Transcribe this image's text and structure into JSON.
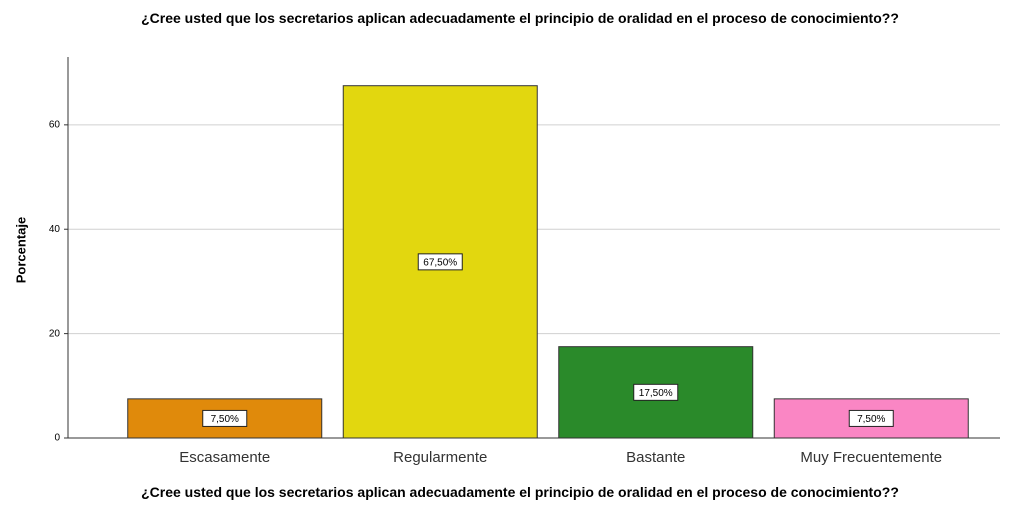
{
  "chart_data": {
    "type": "bar",
    "title": "¿Cree usted que los secretarios aplican adecuadamente el principio de oralidad en el proceso de conocimiento??",
    "x_label": "¿Cree usted que los secretarios aplican adecuadamente el principio de oralidad en el proceso de conocimiento??",
    "y_label": "Porcentaje",
    "categories": [
      "Escasamente",
      "Regularmente",
      "Bastante",
      "Muy Frecuentemente"
    ],
    "values": [
      7.5,
      67.5,
      17.5,
      7.5
    ],
    "value_labels": [
      "7,50%",
      "67,50%",
      "17,50%",
      "7,50%"
    ],
    "colors": [
      "#e08a0b",
      "#e2d70f",
      "#2a8a2a",
      "#fa86c4"
    ],
    "ylim": [
      0,
      73
    ],
    "yticks": [
      0,
      20,
      40,
      60
    ],
    "grid": true
  }
}
